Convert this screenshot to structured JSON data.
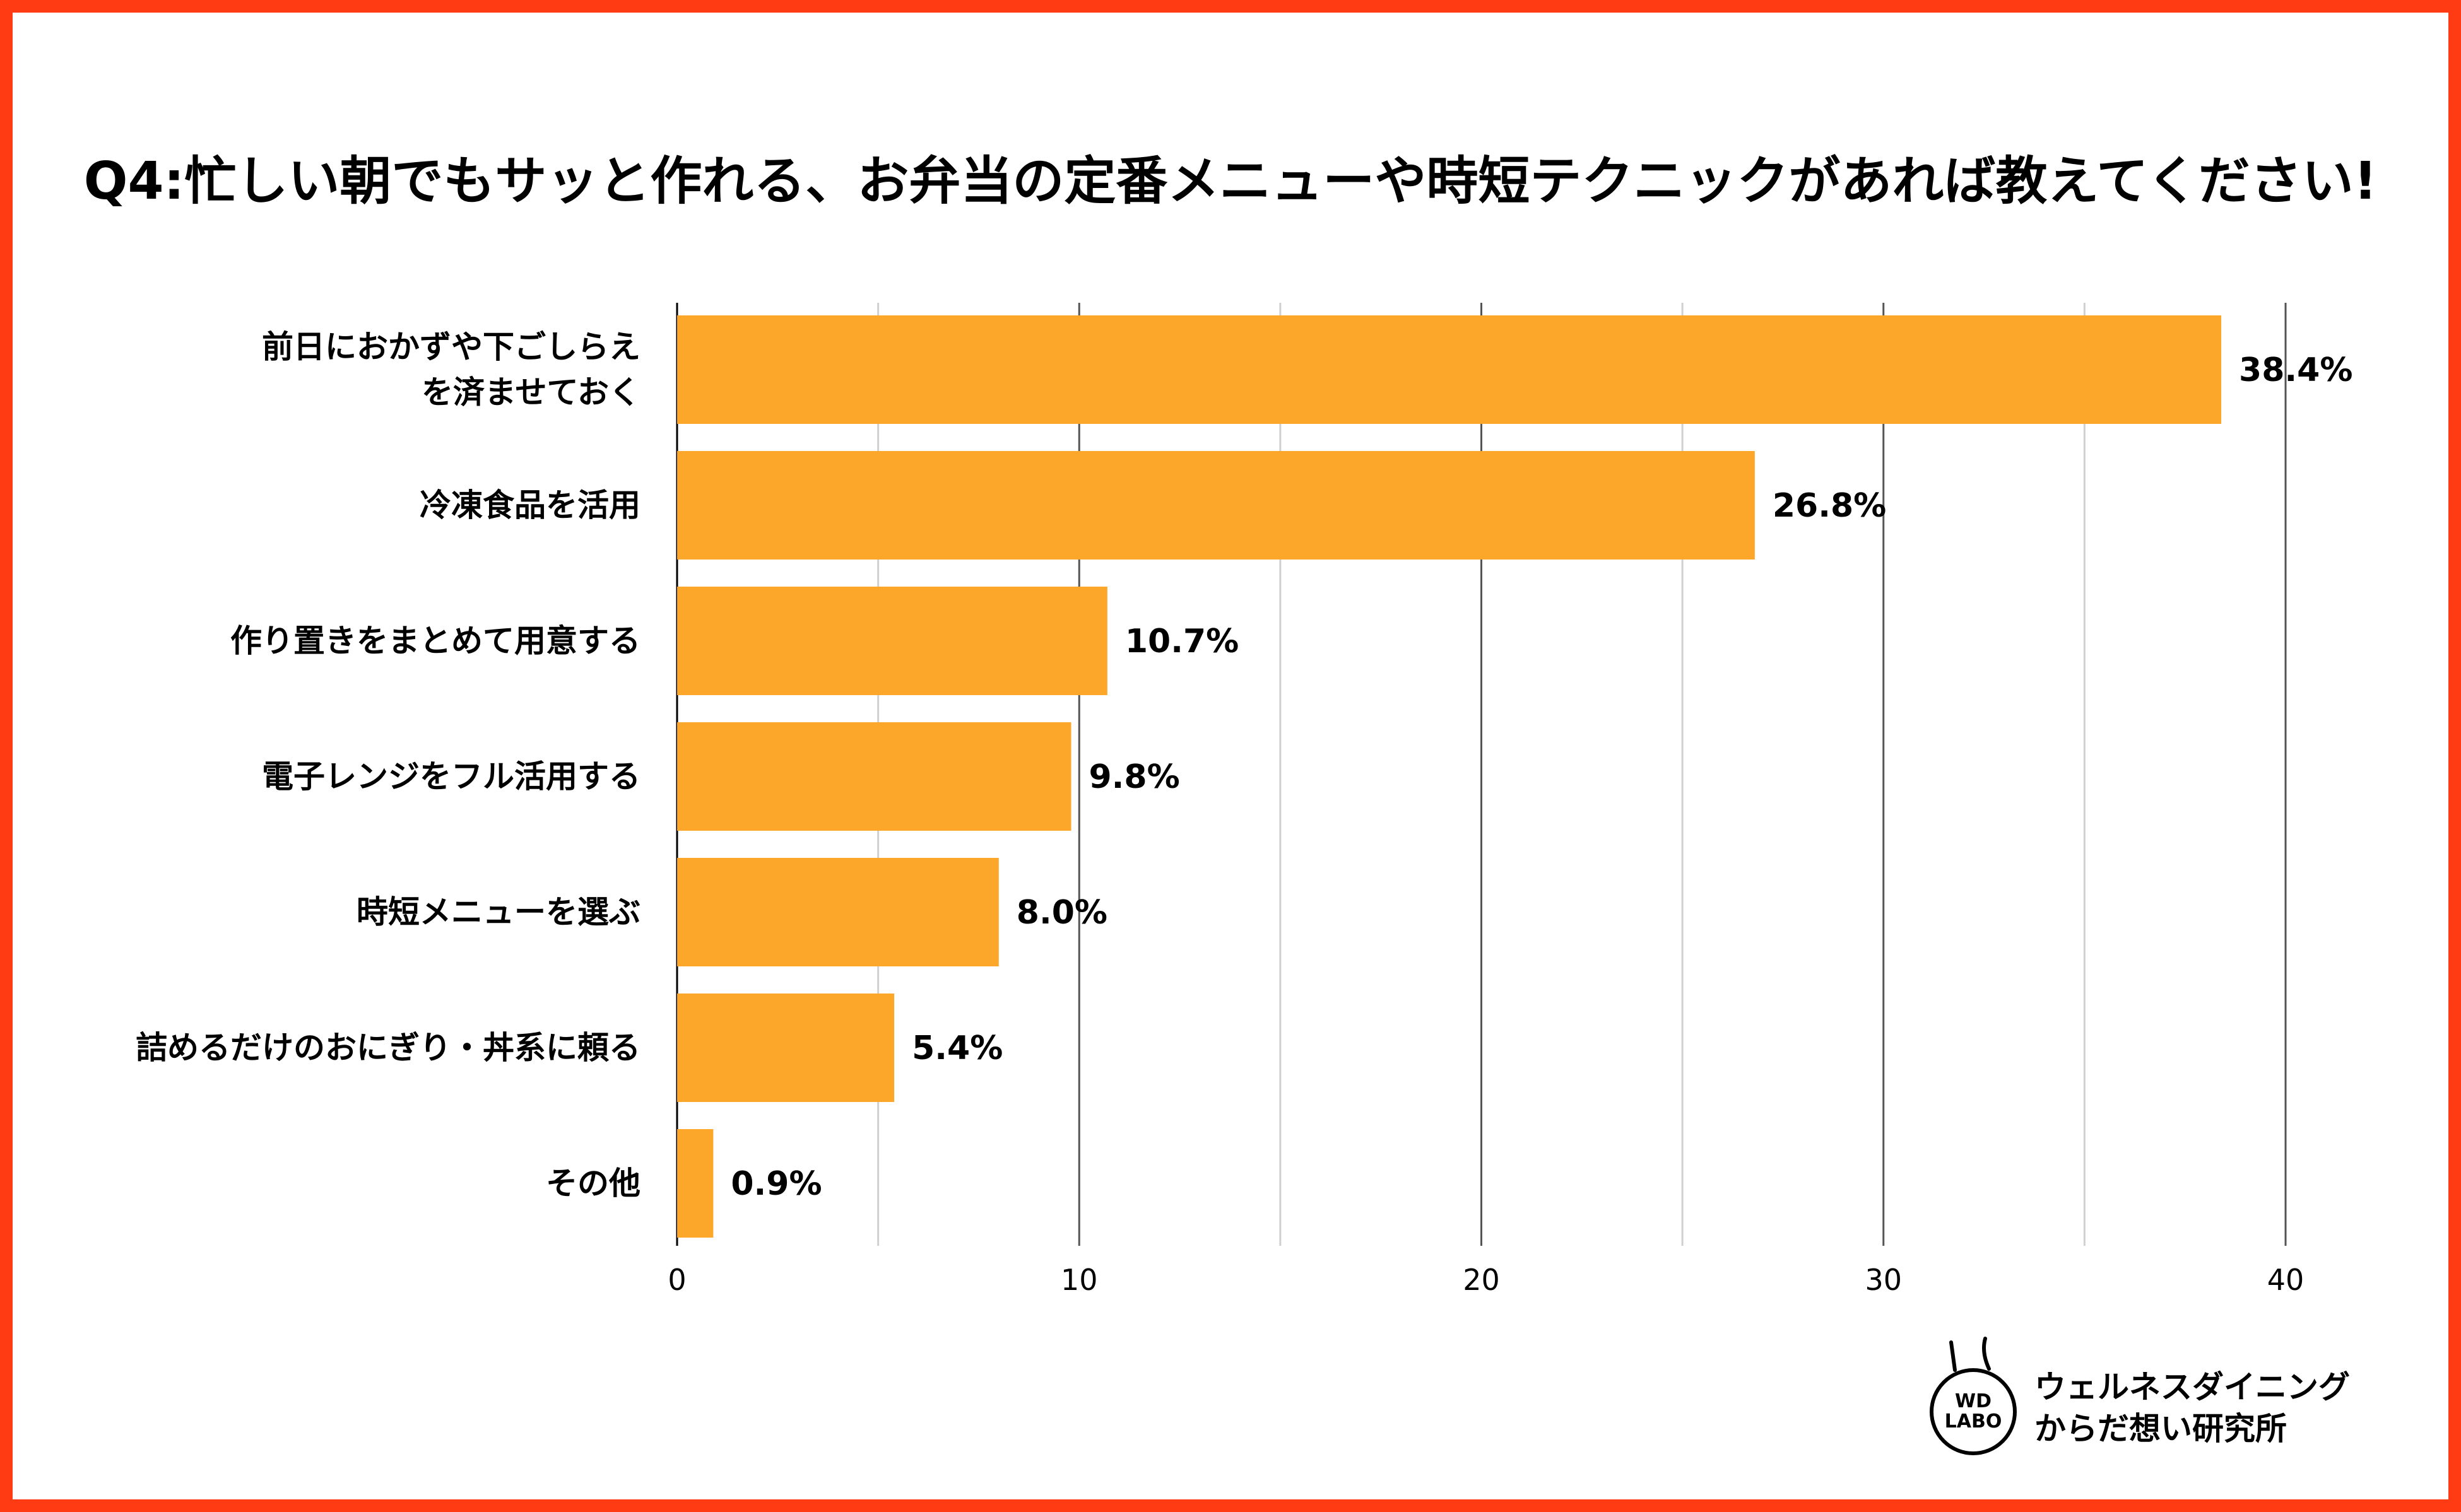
{
  "title": "Q4:忙しい朝でもサッと作れる、お弁当の定番メニューや時短テクニックがあれば教えてください!",
  "colors": {
    "bar": "#fca62a",
    "frame": "#ff3b14",
    "grid": "#d0d0d0",
    "axis": "#000000"
  },
  "chart_data": {
    "type": "bar",
    "orientation": "horizontal",
    "categories": [
      [
        "前日におかずや下ごしらえ",
        "を済ませておく"
      ],
      [
        "冷凍食品を活用"
      ],
      [
        "作り置きをまとめて用意する"
      ],
      [
        "電子レンジをフル活用する"
      ],
      [
        "時短メニューを選ぶ"
      ],
      [
        "詰めるだけのおにぎり・丼系に頼る"
      ],
      [
        "その他"
      ]
    ],
    "values": [
      38.4,
      26.8,
      10.7,
      9.8,
      8.0,
      5.4,
      0.9
    ],
    "value_labels": [
      "38.4%",
      "26.8%",
      "10.7%",
      "9.8%",
      "8.0%",
      "5.4%",
      "0.9%"
    ],
    "xlim": [
      0,
      40
    ],
    "xticks": [
      0,
      10,
      20,
      30,
      40
    ],
    "minor_grid_step": 5,
    "grid": true,
    "xlabel": "",
    "ylabel": ""
  },
  "brand": {
    "logo_line1": "WD",
    "logo_line2": "LABO",
    "name_line1": "ウェルネスダイニング",
    "name_line2": "からだ想い研究所"
  }
}
